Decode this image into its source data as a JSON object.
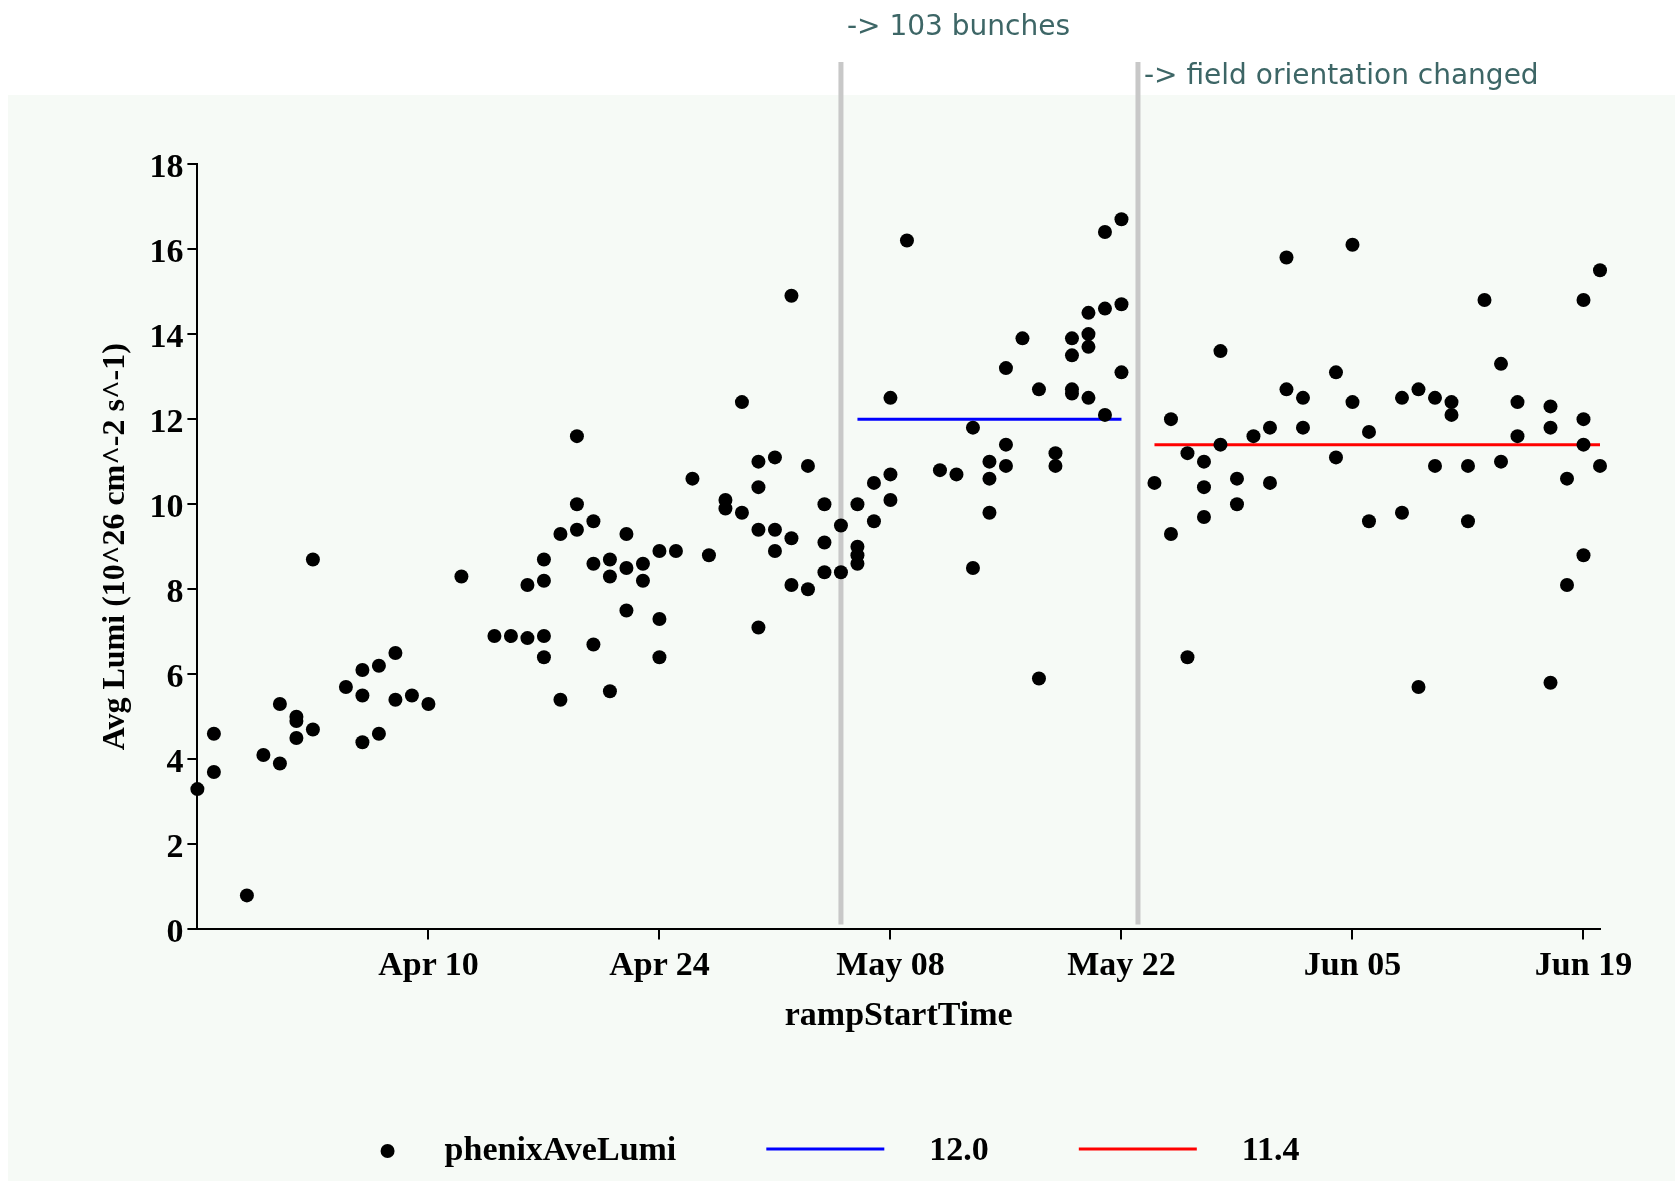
{
  "chart_data": {
    "type": "scatter",
    "xlabel": "rampStartTime",
    "ylabel": "Avg Lumi (10^26 cm^-2 s^-1)",
    "xlim": [
      "--03-27",
      "--06-20"
    ],
    "xticks": [
      {
        "value": "--04-10",
        "label": "Apr 10"
      },
      {
        "value": "--04-24",
        "label": "Apr 24"
      },
      {
        "value": "--05-08",
        "label": "May 08"
      },
      {
        "value": "--05-22",
        "label": "May 22"
      },
      {
        "value": "--06-05",
        "label": "Jun 05"
      },
      {
        "value": "--06-19",
        "label": "Jun 19"
      }
    ],
    "ylim": [
      0,
      18
    ],
    "yticks": [
      0,
      2,
      4,
      6,
      8,
      10,
      12,
      14,
      16,
      18
    ],
    "legend": "bottom",
    "marker": "circle",
    "ref_lines": [
      {
        "axis": "x",
        "value": "--05-05",
        "label": "-> 103 bunches",
        "color": "#c8c8c8"
      },
      {
        "axis": "x",
        "value": "--05-23",
        "label": "-> field orientation changed",
        "color": "#c8c8c8"
      }
    ],
    "series": [
      {
        "name": "phenixAveLumi",
        "type": "scatter",
        "color": "#000000",
        "x": [
          "--03-27",
          "--03-28",
          "--03-28",
          "--03-30",
          "--03-31",
          "--04-01",
          "--04-01",
          "--04-02",
          "--04-02",
          "--04-02",
          "--04-03",
          "--04-03",
          "--04-05",
          "--04-06",
          "--04-06",
          "--04-06",
          "--04-07",
          "--04-07",
          "--04-08",
          "--04-08",
          "--04-09",
          "--04-10",
          "--04-12",
          "--04-14",
          "--04-15",
          "--04-16",
          "--04-17",
          "--04-16",
          "--04-17",
          "--04-17",
          "--04-17",
          "--04-18",
          "--04-18",
          "--04-19",
          "--04-19",
          "--04-19",
          "--04-20",
          "--04-20",
          "--04-20",
          "--04-21",
          "--04-21",
          "--04-21",
          "--04-22",
          "--04-22",
          "--04-22",
          "--04-23",
          "--04-23",
          "--04-24",
          "--04-24",
          "--04-24",
          "--04-25",
          "--04-26",
          "--04-27",
          "--04-28",
          "--04-28",
          "--04-29",
          "--04-29",
          "--04-30",
          "--04-30",
          "--04-30",
          "--04-30",
          "--05-01",
          "--05-01",
          "--05-01",
          "--05-02",
          "--05-02",
          "--05-02",
          "--05-03",
          "--05-03",
          "--05-04",
          "--05-04",
          "--05-04",
          "--05-05",
          "--05-05",
          "--05-06",
          "--05-06",
          "--05-06",
          "--05-06",
          "--05-07",
          "--05-07",
          "--05-08",
          "--05-08",
          "--05-08",
          "--05-09",
          "--05-11",
          "--05-12",
          "--05-13",
          "--05-13",
          "--05-14",
          "--05-14",
          "--05-14",
          "--05-15",
          "--05-15",
          "--05-15",
          "--05-16",
          "--05-17",
          "--05-17",
          "--05-18",
          "--05-18",
          "--05-19",
          "--05-19",
          "--05-19",
          "--05-19",
          "--05-20",
          "--05-20",
          "--05-20",
          "--05-20",
          "--05-21",
          "--05-21",
          "--05-21",
          "--05-22",
          "--05-22",
          "--05-22",
          "--05-24",
          "--05-25",
          "--05-25",
          "--05-26",
          "--05-26",
          "--05-27",
          "--05-27",
          "--05-27",
          "--05-28",
          "--05-28",
          "--05-29",
          "--05-29",
          "--05-30",
          "--05-31",
          "--05-31",
          "--06-01",
          "--06-01",
          "--06-02",
          "--06-02",
          "--06-04",
          "--06-04",
          "--06-05",
          "--06-05",
          "--06-06",
          "--06-06",
          "--06-08",
          "--06-08",
          "--06-09",
          "--06-09",
          "--06-10",
          "--06-10",
          "--06-11",
          "--06-11",
          "--06-12",
          "--06-12",
          "--06-13",
          "--06-14",
          "--06-14",
          "--06-15",
          "--06-15",
          "--06-17",
          "--06-17",
          "--06-17",
          "--06-18",
          "--06-18",
          "--06-19",
          "--06-19",
          "--06-19",
          "--06-19",
          "--06-20",
          "--06-20"
        ],
        "values": [
          3.3,
          4.6,
          3.7,
          0.8,
          4.1,
          3.9,
          5.3,
          4.5,
          4.9,
          5.0,
          4.7,
          8.7,
          5.7,
          5.5,
          6.1,
          4.4,
          4.6,
          6.2,
          5.4,
          6.5,
          5.5,
          5.3,
          8.3,
          6.9,
          6.9,
          6.85,
          6.9,
          8.1,
          6.4,
          8.7,
          8.2,
          5.4,
          9.3,
          11.6,
          10.0,
          9.4,
          6.7,
          8.6,
          9.6,
          5.6,
          8.3,
          8.7,
          7.5,
          9.3,
          8.5,
          8.2,
          8.6,
          8.9,
          6.4,
          7.3,
          8.9,
          10.6,
          8.8,
          10.1,
          9.9,
          12.4,
          9.8,
          7.1,
          11.0,
          10.4,
          9.4,
          8.9,
          9.4,
          11.1,
          8.1,
          9.2,
          14.9,
          10.9,
          8.0,
          8.4,
          9.1,
          10.0,
          9.5,
          8.4,
          9.0,
          10.0,
          8.6,
          8.8,
          10.5,
          9.6,
          12.5,
          10.7,
          10.1,
          16.2,
          10.8,
          10.7,
          8.5,
          11.8,
          11.0,
          10.6,
          9.8,
          13.2,
          10.9,
          11.4,
          13.9,
          5.9,
          12.7,
          11.2,
          10.9,
          13.5,
          12.7,
          13.9,
          12.6,
          13.7,
          14.5,
          14.0,
          12.5,
          12.1,
          14.6,
          16.4,
          16.7,
          14.7,
          13.1,
          10.5,
          9.3,
          12.0,
          11.2,
          6.4,
          11.0,
          10.4,
          9.7,
          13.6,
          11.4,
          10.6,
          10.0,
          11.6,
          10.5,
          11.8,
          12.7,
          15.8,
          11.8,
          12.5,
          11.1,
          13.1,
          12.4,
          16.1,
          9.6,
          11.7,
          12.5,
          9.8,
          5.7,
          12.7,
          10.9,
          12.5,
          12.4,
          12.1,
          10.9,
          9.6,
          14.8,
          13.3,
          11.0,
          11.6,
          12.4,
          11.8,
          12.3,
          5.8,
          8.1,
          10.6,
          11.4,
          14.8,
          8.8,
          12.0,
          10.9,
          15.5
        ]
      },
      {
        "name": "12.0",
        "type": "line",
        "color": "#0000ff",
        "marker": "none",
        "x": [
          "--05-06",
          "--05-22"
        ],
        "values": [
          12.0,
          12.0
        ]
      },
      {
        "name": "11.4",
        "type": "line",
        "color": "#ff0000",
        "marker": "none",
        "x": [
          "--05-24",
          "--06-20"
        ],
        "values": [
          11.4,
          11.4
        ]
      }
    ]
  }
}
